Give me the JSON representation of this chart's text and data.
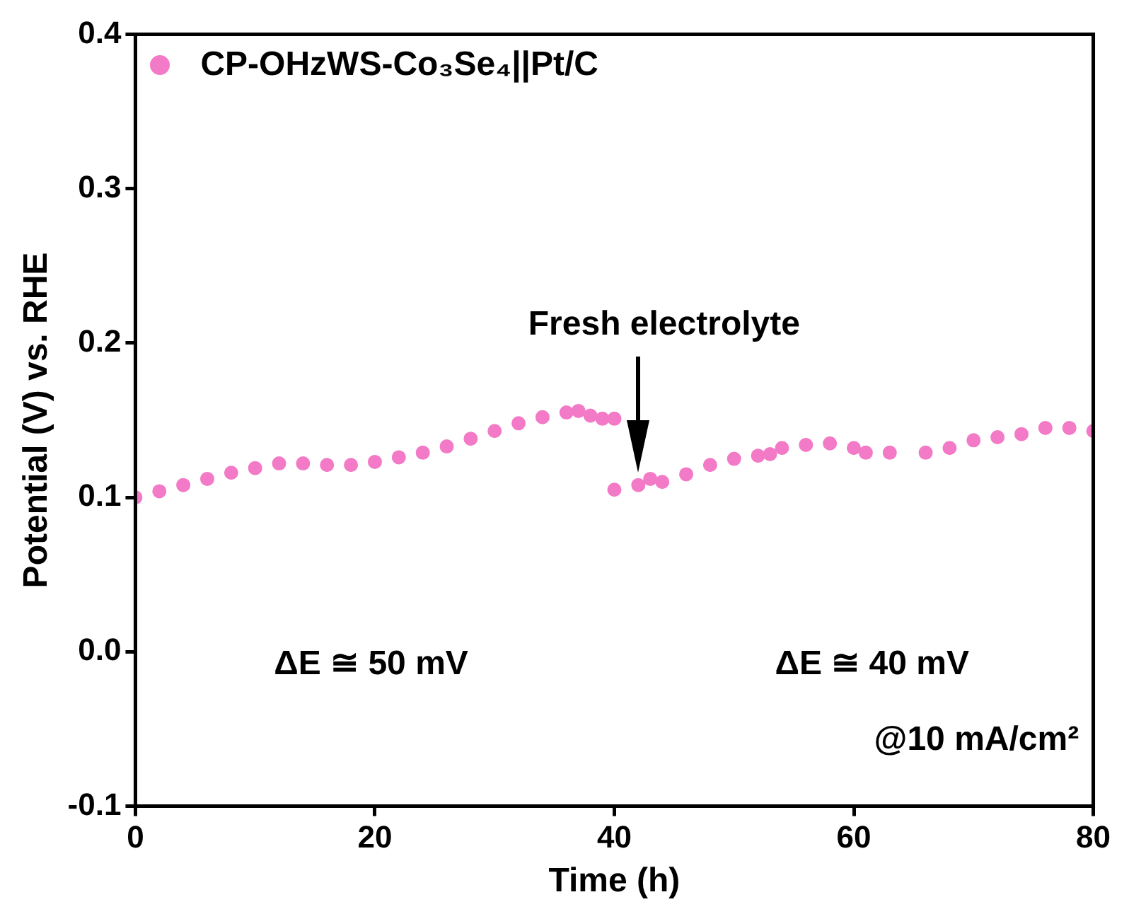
{
  "chart_data": {
    "type": "scatter",
    "xlabel": "Time (h)",
    "ylabel": "Potential (V) vs. RHE",
    "xlim": [
      0,
      80
    ],
    "xticks": [
      0,
      20,
      40,
      60,
      80
    ],
    "ylim": [
      -0.1,
      0.4
    ],
    "yticks": [
      -0.1,
      {
        "value": 0,
        "label": "0.0"
      },
      0.1,
      0.2,
      0.3,
      0.4
    ],
    "grid": false,
    "legend": "top left",
    "marker": "circle",
    "series": [
      {
        "name": "CP-OHzWS-Co₃Se₄||Pt/C",
        "color": "#f37ac6",
        "x": [
          0,
          2,
          4,
          6,
          8,
          10,
          12,
          14,
          16,
          18,
          20,
          22,
          24,
          26,
          28,
          30,
          32,
          34,
          36,
          37,
          38,
          39,
          40,
          40,
          42,
          43,
          44,
          46,
          48,
          50,
          52,
          53,
          54,
          56,
          58,
          60,
          61,
          63,
          66,
          68,
          70,
          72,
          74,
          76,
          78,
          80
        ],
        "values": [
          0.1,
          0.104,
          0.108,
          0.112,
          0.116,
          0.119,
          0.122,
          0.122,
          0.121,
          0.121,
          0.123,
          0.126,
          0.129,
          0.133,
          0.138,
          0.143,
          0.148,
          0.152,
          0.155,
          0.156,
          0.153,
          0.151,
          0.151,
          0.105,
          0.108,
          0.112,
          0.11,
          0.115,
          0.121,
          0.125,
          0.127,
          0.128,
          0.132,
          0.134,
          0.135,
          0.132,
          0.129,
          0.129,
          0.129,
          0.132,
          0.137,
          0.139,
          0.141,
          0.145,
          0.145,
          0.143
        ]
      }
    ],
    "annotations": [
      "Fresh electrolyte",
      "ΔE ≅ 50 mV",
      "ΔE ≅ 40 mV",
      "@10 mA/cm²"
    ]
  }
}
